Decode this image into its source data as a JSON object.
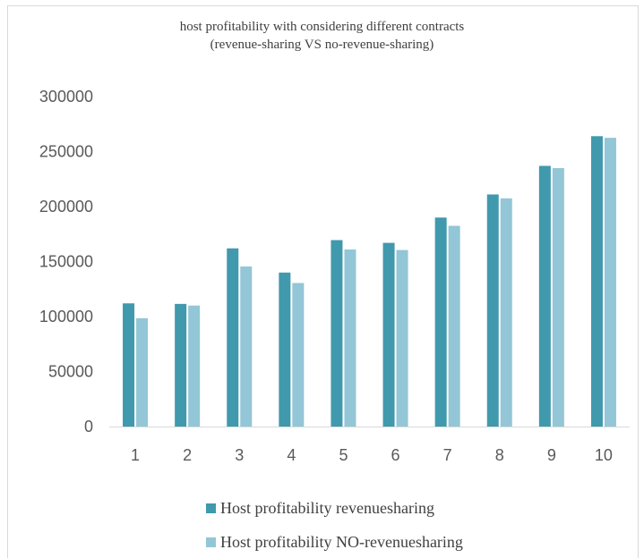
{
  "chart_data": {
    "type": "bar",
    "title_lines": [
      "host profitability with considering different contracts",
      "(revenue-sharing VS no-revenue-sharing)"
    ],
    "categories": [
      "1",
      "2",
      "3",
      "4",
      "5",
      "6",
      "7",
      "8",
      "9",
      "10"
    ],
    "series": [
      {
        "name": "Host profitability  revenuesharing",
        "color": "#4099ad",
        "values": [
          112000,
          111500,
          162000,
          140000,
          169500,
          167000,
          190000,
          211000,
          237000,
          264000
        ]
      },
      {
        "name": "Host profitability  NO-revenuesharing",
        "color": "#93c6d6",
        "values": [
          98500,
          110000,
          145500,
          130500,
          161000,
          160500,
          182500,
          207500,
          235000,
          262500
        ]
      }
    ],
    "ylim": [
      0,
      300000
    ],
    "yticks": [
      0,
      50000,
      100000,
      150000,
      200000,
      250000,
      300000
    ],
    "ytick_labels": [
      "0",
      "50000",
      "100000",
      "150000",
      "200000",
      "250000",
      "300000"
    ],
    "xlabel": "",
    "ylabel": "",
    "grid": false,
    "legend_position": "bottom"
  }
}
